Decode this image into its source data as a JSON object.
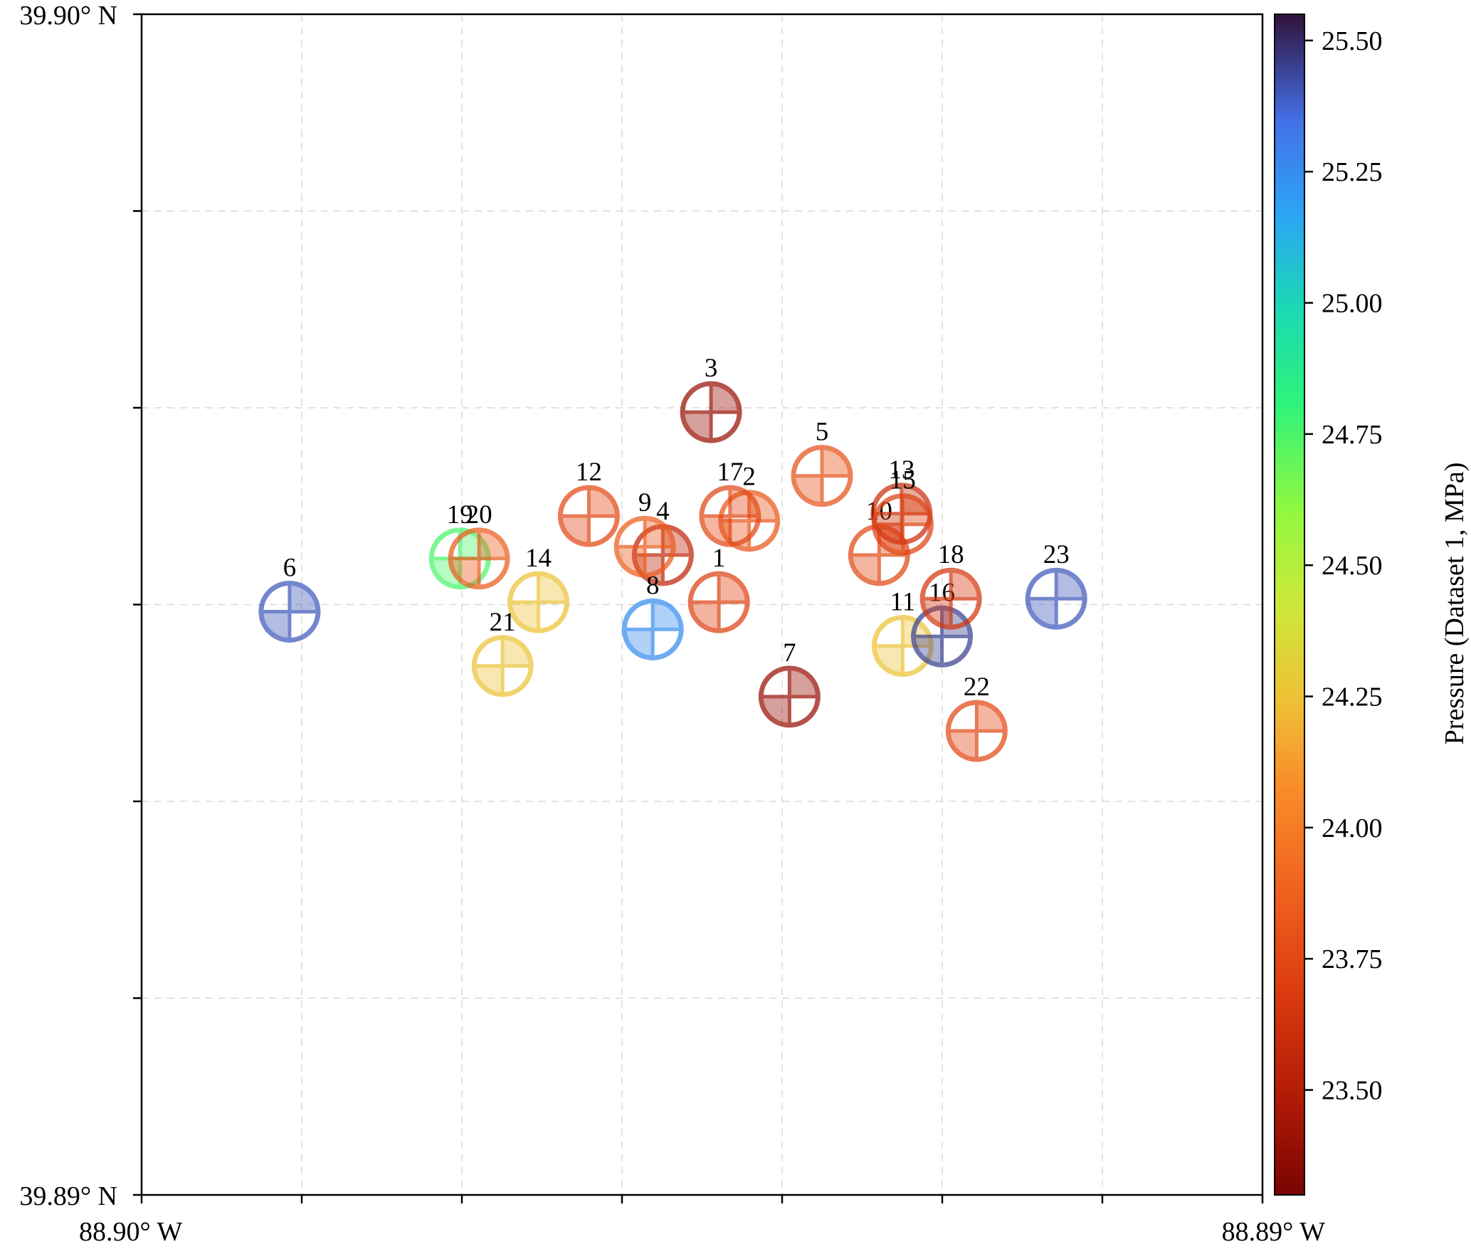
{
  "chart_data": {
    "type": "scatter",
    "title": "",
    "xlabel": "",
    "ylabel": "",
    "x_ticks": [
      {
        "value": 88.9,
        "label": "88.90° W"
      },
      {
        "value": 88.89,
        "label": "88.89° W"
      }
    ],
    "y_ticks": [
      {
        "value": 39.9,
        "label": "39.90° N"
      },
      {
        "value": 39.89,
        "label": "39.89° N"
      }
    ],
    "xlim": [
      88.9,
      88.89
    ],
    "ylim": [
      39.89,
      39.9
    ],
    "grid": true,
    "colorbar": {
      "label": "Pressure (Dataset 1, MPa)",
      "range": [
        23.3,
        25.55
      ],
      "ticks": [
        "23.50",
        "23.75",
        "24.00",
        "24.25",
        "24.50",
        "24.75",
        "25.00",
        "25.25",
        "25.50"
      ],
      "colormap": "turbo"
    },
    "points": [
      {
        "label": "1",
        "x": 88.89485,
        "y": 39.89502,
        "pressure": 23.72
      },
      {
        "label": "2",
        "x": 88.89458,
        "y": 39.89571,
        "pressure": 23.82
      },
      {
        "label": "3",
        "x": 88.89492,
        "y": 39.89663,
        "pressure": 23.4
      },
      {
        "label": "4",
        "x": 88.89535,
        "y": 39.89542,
        "pressure": 23.55
      },
      {
        "label": "5",
        "x": 88.89393,
        "y": 39.89609,
        "pressure": 23.8
      },
      {
        "label": "6",
        "x": 88.89868,
        "y": 39.89494,
        "pressure": 25.4
      },
      {
        "label": "7",
        "x": 88.89422,
        "y": 39.89422,
        "pressure": 23.4
      },
      {
        "label": "8",
        "x": 88.89544,
        "y": 39.89479,
        "pressure": 25.25
      },
      {
        "label": "9",
        "x": 88.89551,
        "y": 39.89549,
        "pressure": 23.85
      },
      {
        "label": "10",
        "x": 88.89342,
        "y": 39.89542,
        "pressure": 23.75
      },
      {
        "label": "11",
        "x": 88.89321,
        "y": 39.89465,
        "pressure": 24.25
      },
      {
        "label": "12",
        "x": 88.89601,
        "y": 39.89575,
        "pressure": 23.75
      },
      {
        "label": "13",
        "x": 88.89322,
        "y": 39.89577,
        "pressure": 23.6
      },
      {
        "label": "14",
        "x": 88.89646,
        "y": 39.89502,
        "pressure": 24.25
      },
      {
        "label": "15",
        "x": 88.89321,
        "y": 39.89568,
        "pressure": 23.72
      },
      {
        "label": "16",
        "x": 88.89286,
        "y": 39.89473,
        "pressure": 25.45
      },
      {
        "label": "17",
        "x": 88.89475,
        "y": 39.89575,
        "pressure": 23.75
      },
      {
        "label": "18",
        "x": 88.89278,
        "y": 39.89505,
        "pressure": 23.65
      },
      {
        "label": "19",
        "x": 88.89716,
        "y": 39.89539,
        "pressure": 24.75
      },
      {
        "label": "20",
        "x": 88.89699,
        "y": 39.89539,
        "pressure": 23.85
      },
      {
        "label": "21",
        "x": 88.89678,
        "y": 39.89448,
        "pressure": 24.25
      },
      {
        "label": "22",
        "x": 88.89255,
        "y": 39.89393,
        "pressure": 23.75
      },
      {
        "label": "23",
        "x": 88.89184,
        "y": 39.89505,
        "pressure": 25.4
      }
    ]
  }
}
